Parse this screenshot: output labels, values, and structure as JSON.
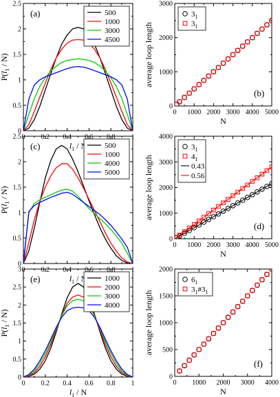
{
  "chart_data": [
    {
      "id": "a",
      "type": "line",
      "panel_label": "(a)",
      "xlabel_main": "l",
      "xlabel_sub": "1",
      "xlabel_rest": " / N",
      "ylabel_main": "P(",
      "ylabel_l": "l",
      "ylabel_sub": "1",
      "ylabel_rest": " / N)",
      "xlim": [
        0,
        1
      ],
      "ylim": [
        0,
        2.5
      ],
      "xticks": [
        0,
        0.2,
        0.4,
        0.6,
        0.8,
        1
      ],
      "xtick_labels": [
        "0",
        "0.2",
        "0.4",
        "0.6",
        "0.8",
        "1"
      ],
      "yticks": [
        0,
        0.5,
        1,
        1.5,
        2,
        2.5
      ],
      "ytick_labels": [
        "0",
        "0.5",
        "1",
        "1.5",
        "2",
        "2.5"
      ],
      "legend_position": "top-right",
      "x": [
        0,
        0.05,
        0.1,
        0.15,
        0.2,
        0.25,
        0.3,
        0.35,
        0.4,
        0.45,
        0.5,
        0.55,
        0.6,
        0.65,
        0.7,
        0.75,
        0.8,
        0.85,
        0.9,
        0.95,
        1
      ],
      "series": [
        {
          "name": "500",
          "color": "#000000",
          "values": [
            0,
            0.05,
            0.22,
            0.48,
            0.8,
            1.12,
            1.43,
            1.7,
            1.88,
            2.0,
            2.03,
            2.0,
            1.88,
            1.7,
            1.43,
            1.12,
            0.8,
            0.48,
            0.22,
            0.05,
            0
          ]
        },
        {
          "name": "1000",
          "color": "#ff0000",
          "values": [
            0,
            0.12,
            0.38,
            0.66,
            0.94,
            1.2,
            1.43,
            1.6,
            1.72,
            1.78,
            1.79,
            1.78,
            1.72,
            1.6,
            1.43,
            1.2,
            0.94,
            0.66,
            0.38,
            0.12,
            0
          ]
        },
        {
          "name": "3000",
          "color": "#00cc00",
          "values": [
            0,
            0.32,
            0.63,
            0.87,
            1.04,
            1.17,
            1.27,
            1.34,
            1.38,
            1.4,
            1.41,
            1.4,
            1.38,
            1.34,
            1.27,
            1.17,
            1.04,
            0.87,
            0.63,
            0.32,
            0
          ]
        },
        {
          "name": "4500",
          "color": "#0000ff",
          "values": [
            0,
            0.62,
            0.9,
            1.0,
            1.06,
            1.1,
            1.14,
            1.18,
            1.22,
            1.25,
            1.26,
            1.25,
            1.22,
            1.18,
            1.14,
            1.1,
            1.06,
            1.0,
            0.9,
            0.62,
            0
          ]
        }
      ]
    },
    {
      "id": "b",
      "type": "scatter",
      "panel_label": "(b)",
      "xlabel": "N",
      "ylabel": "average loop length",
      "xlim": [
        0,
        5000
      ],
      "ylim": [
        0,
        3000
      ],
      "xticks": [
        0,
        1000,
        2000,
        3000,
        4000,
        5000
      ],
      "xtick_labels": [
        "0",
        "1000",
        "2000",
        "3000",
        "4000",
        "5000"
      ],
      "yticks": [
        0,
        1000,
        2000,
        3000
      ],
      "ytick_labels": [
        "0",
        "1000",
        "2000",
        "3000"
      ],
      "legend_position": "top-left",
      "series": [
        {
          "name_main": "3",
          "name_sub": "1",
          "marker": "circle",
          "color": "#000000",
          "x": [
            100,
            250,
            500,
            750,
            1000,
            1250,
            1500,
            1750,
            2000,
            2250,
            2500,
            2750,
            3000,
            3250,
            3500,
            3750,
            4000,
            4250,
            4500,
            4750,
            5000
          ],
          "values": [
            50,
            125,
            250,
            375,
            500,
            625,
            750,
            875,
            1000,
            1125,
            1250,
            1375,
            1500,
            1625,
            1750,
            1875,
            2000,
            2125,
            2250,
            2375,
            2500
          ]
        },
        {
          "name_main": "3",
          "name_sub": "1",
          "marker": "square",
          "color": "#ff0000",
          "x": [
            100,
            250,
            500,
            750,
            1000,
            1250,
            1500,
            1750,
            2000,
            2250,
            2500,
            2750,
            3000,
            3250,
            3500,
            3750,
            4000,
            4250,
            4500,
            4750,
            5000
          ],
          "values": [
            50,
            125,
            250,
            375,
            500,
            625,
            750,
            875,
            1000,
            1125,
            1250,
            1375,
            1500,
            1625,
            1750,
            1875,
            2000,
            2125,
            2250,
            2375,
            2500
          ]
        }
      ]
    },
    {
      "id": "c",
      "type": "line",
      "panel_label": "(c)",
      "xlabel_main": "l",
      "xlabel_sub": "1",
      "xlabel_rest": " / N",
      "ylabel_main": "P(",
      "ylabel_l": "l",
      "ylabel_sub": "1",
      "ylabel_rest": " / N)",
      "xlim": [
        0,
        1
      ],
      "ylim": [
        0,
        2.5
      ],
      "xticks": [
        0,
        0.2,
        0.4,
        0.6,
        0.8,
        1
      ],
      "xtick_labels": [
        "0",
        "0.2",
        "0.4",
        "0.6",
        "0.8",
        "1"
      ],
      "yticks": [
        0,
        0.5,
        1,
        1.5,
        2,
        2.5
      ],
      "ytick_labels": [
        "0",
        "0.5",
        "1",
        "1.5",
        "2",
        "2.5"
      ],
      "legend_position": "top-right",
      "x": [
        0,
        0.05,
        0.1,
        0.15,
        0.2,
        0.25,
        0.3,
        0.35,
        0.4,
        0.45,
        0.5,
        0.55,
        0.6,
        0.65,
        0.7,
        0.75,
        0.8,
        0.85,
        0.9,
        0.95,
        1
      ],
      "series": [
        {
          "name": "500",
          "color": "#000000",
          "values": [
            0,
            0.25,
            0.7,
            1.2,
            1.68,
            2.02,
            2.25,
            2.32,
            2.25,
            2.05,
            1.8,
            1.52,
            1.23,
            0.96,
            0.7,
            0.48,
            0.3,
            0.15,
            0.06,
            0.01,
            0
          ]
        },
        {
          "name": "1000",
          "color": "#ff0000",
          "values": [
            0,
            0.42,
            0.86,
            1.22,
            1.5,
            1.72,
            1.88,
            1.96,
            1.96,
            1.85,
            1.68,
            1.48,
            1.26,
            1.04,
            0.82,
            0.6,
            0.4,
            0.24,
            0.11,
            0.03,
            0
          ]
        },
        {
          "name": "4000",
          "color": "#00cc00",
          "values": [
            0,
            1.0,
            1.18,
            1.25,
            1.3,
            1.35,
            1.4,
            1.44,
            1.46,
            1.42,
            1.32,
            1.2,
            1.08,
            0.98,
            0.88,
            0.78,
            0.67,
            0.54,
            0.4,
            0.2,
            0
          ]
        },
        {
          "name": "5000",
          "color": "#0000ff",
          "values": [
            0,
            1.02,
            1.14,
            1.2,
            1.25,
            1.3,
            1.34,
            1.38,
            1.4,
            1.36,
            1.28,
            1.2,
            1.12,
            1.04,
            0.96,
            0.86,
            0.75,
            0.62,
            0.48,
            0.32,
            0
          ]
        }
      ]
    },
    {
      "id": "d",
      "type": "scatter",
      "panel_label": "(d)",
      "xlabel": "N",
      "ylabel": "average loop length",
      "xlim": [
        0,
        5000
      ],
      "ylim": [
        0,
        4000
      ],
      "xticks": [
        0,
        1000,
        2000,
        3000,
        4000,
        5000
      ],
      "xtick_labels": [
        "0",
        "1000",
        "2000",
        "3000",
        "4000",
        "5000"
      ],
      "yticks": [
        0,
        1000,
        2000,
        3000,
        4000
      ],
      "ytick_labels": [
        "0",
        "1000",
        "2000",
        "3000",
        "4000"
      ],
      "legend_position": "top-left",
      "series": [
        {
          "name_main": "3",
          "name_sub": "1",
          "marker": "circle",
          "color": "#000000",
          "x": [
            100,
            250,
            500,
            750,
            1000,
            1250,
            1500,
            1750,
            2000,
            2250,
            2500,
            2750,
            3000,
            3250,
            3500,
            3750,
            4000,
            4250,
            4500,
            4750,
            5000
          ],
          "values": [
            43,
            108,
            215,
            323,
            430,
            538,
            645,
            753,
            860,
            968,
            1075,
            1183,
            1290,
            1398,
            1505,
            1613,
            1720,
            1828,
            1935,
            2043,
            2150
          ]
        },
        {
          "name_main": "4",
          "name_sub": "1",
          "marker": "square",
          "color": "#ff0000",
          "x": [
            100,
            250,
            500,
            750,
            1000,
            1250,
            1500,
            1750,
            2000,
            2250,
            2500,
            2750,
            3000,
            3250,
            3500,
            3750,
            4000,
            4250,
            4500,
            4750,
            5000
          ],
          "values": [
            56,
            140,
            280,
            420,
            560,
            700,
            840,
            980,
            1120,
            1260,
            1400,
            1540,
            1680,
            1820,
            1960,
            2100,
            2240,
            2380,
            2520,
            2660,
            2800
          ]
        }
      ],
      "fit_lines": [
        {
          "name": "0.43",
          "slope": 0.43,
          "color": "#000000"
        },
        {
          "name": "0.56",
          "slope": 0.56,
          "color": "#ff0000"
        }
      ]
    },
    {
      "id": "e",
      "type": "line",
      "panel_label": "(e)",
      "xlabel_main": "l",
      "xlabel_sub": "1",
      "xlabel_rest": " / N",
      "ylabel_main": "P(",
      "ylabel_l": "l",
      "ylabel_sub": "1",
      "ylabel_rest": " / N)",
      "xlim": [
        0,
        1
      ],
      "ylim": [
        0,
        3
      ],
      "xticks": [
        0,
        0.2,
        0.4,
        0.6,
        0.8,
        1
      ],
      "xtick_labels": [
        "0",
        "0.2",
        "0.4",
        "0.6",
        "0.8",
        "1"
      ],
      "yticks": [
        0,
        0.5,
        1,
        1.5,
        2,
        2.5,
        3
      ],
      "ytick_labels": [
        "0",
        "0.5",
        "1",
        "1.5",
        "2",
        "2.5",
        "3"
      ],
      "legend_position": "top-right",
      "x": [
        0,
        0.05,
        0.1,
        0.15,
        0.2,
        0.25,
        0.3,
        0.35,
        0.4,
        0.45,
        0.5,
        0.55,
        0.6,
        0.65,
        0.7,
        0.75,
        0.8,
        0.85,
        0.9,
        0.95,
        1
      ],
      "series": [
        {
          "name": "1000",
          "color": "#000000",
          "values": [
            0,
            0.02,
            0.08,
            0.22,
            0.45,
            0.8,
            1.25,
            1.75,
            2.2,
            2.5,
            2.6,
            2.5,
            2.2,
            1.75,
            1.25,
            0.8,
            0.45,
            0.22,
            0.08,
            0.02,
            0
          ]
        },
        {
          "name": "2000",
          "color": "#ff0000",
          "values": [
            0,
            0.03,
            0.12,
            0.3,
            0.56,
            0.9,
            1.3,
            1.72,
            2.05,
            2.22,
            2.28,
            2.22,
            2.05,
            1.72,
            1.3,
            0.9,
            0.56,
            0.3,
            0.12,
            0.03,
            0
          ]
        },
        {
          "name": "3000",
          "color": "#00cc00",
          "values": [
            0,
            0.05,
            0.17,
            0.38,
            0.65,
            0.98,
            1.35,
            1.7,
            1.98,
            2.12,
            2.16,
            2.12,
            1.98,
            1.7,
            1.35,
            0.98,
            0.65,
            0.38,
            0.17,
            0.05,
            0
          ]
        },
        {
          "name": "4000",
          "color": "#0000ff",
          "values": [
            0,
            0.07,
            0.22,
            0.45,
            0.73,
            1.05,
            1.38,
            1.66,
            1.84,
            1.92,
            1.94,
            1.92,
            1.84,
            1.66,
            1.38,
            1.05,
            0.73,
            0.45,
            0.22,
            0.07,
            0
          ]
        }
      ]
    },
    {
      "id": "f",
      "type": "scatter",
      "panel_label": "(f)",
      "xlabel": "N",
      "ylabel": "average loop length",
      "xlim": [
        0,
        4000
      ],
      "ylim": [
        0,
        2000
      ],
      "xticks": [
        0,
        1000,
        2000,
        3000,
        4000
      ],
      "xtick_labels": [
        "0",
        "1000",
        "2000",
        "3000",
        "4000"
      ],
      "xminor": [
        500,
        1500,
        2500,
        3500
      ],
      "yticks": [
        0,
        500,
        1000,
        1500,
        2000
      ],
      "ytick_labels": [
        "0",
        "500",
        "1000",
        "1500",
        "2000"
      ],
      "legend_position": "top-left",
      "series": [
        {
          "name_main": "6",
          "name_sub": "1",
          "marker": "circle",
          "color": "#000000",
          "x": [
            200,
            400,
            600,
            800,
            1000,
            1200,
            1400,
            1600,
            1800,
            2000,
            2200,
            2400,
            2600,
            2800,
            3000,
            3200,
            3400,
            3600,
            3800,
            4000
          ],
          "values": [
            100,
            200,
            300,
            400,
            500,
            600,
            700,
            800,
            900,
            1000,
            1100,
            1200,
            1300,
            1400,
            1500,
            1600,
            1700,
            1800,
            1900,
            2000
          ]
        },
        {
          "name_main": "3",
          "name_sub": "1",
          "name_mid": "#3",
          "name_sub2": "1",
          "marker": "square",
          "color": "#ff0000",
          "x": [
            200,
            400,
            600,
            800,
            1000,
            1200,
            1400,
            1600,
            1800,
            2000,
            2200,
            2400,
            2600,
            2800,
            3000,
            3200,
            3400,
            3600,
            3800,
            4000
          ],
          "values": [
            100,
            200,
            300,
            400,
            500,
            600,
            700,
            800,
            900,
            1000,
            1100,
            1200,
            1300,
            1400,
            1500,
            1600,
            1700,
            1800,
            1900,
            2000
          ]
        }
      ]
    }
  ]
}
